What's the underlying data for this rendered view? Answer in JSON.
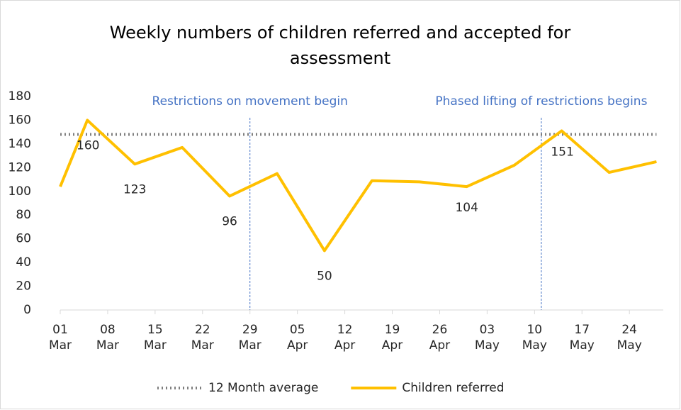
{
  "chart_data": {
    "type": "line",
    "title": "Weekly numbers of children referred and accepted for assessment",
    "x": [
      "01 Mar",
      "05 Mar",
      "12 Mar",
      "19 Mar",
      "26 Mar",
      "02 Apr",
      "09 Apr",
      "16 Apr",
      "23 Apr",
      "30 Apr",
      "07 May",
      "14 May",
      "21 May",
      "28 May"
    ],
    "series": [
      {
        "name": "12 Month average",
        "color": "#7f7f7f",
        "style": "dotted",
        "values": [
          148,
          148,
          148,
          148,
          148,
          148,
          148,
          148,
          148,
          148,
          148,
          148,
          148,
          148
        ]
      },
      {
        "name": "Children referred",
        "color": "#ffc000",
        "values": [
          104,
          160,
          123,
          137,
          96,
          115,
          50,
          109,
          108,
          104,
          122,
          151,
          116,
          125
        ],
        "value_labels": [
          null,
          "160",
          "123",
          null,
          "96",
          null,
          "50",
          null,
          null,
          "104",
          null,
          "151",
          null,
          null
        ]
      }
    ],
    "annotations": [
      {
        "text": "Restrictions on movement begin",
        "x": "29 Mar"
      },
      {
        "text": "Phased lifting of restrictions begins",
        "x": "11 May"
      }
    ],
    "xlim": [
      "01 Mar",
      "29 May"
    ],
    "xticks": [
      "01 Mar",
      "08 Mar",
      "15 Mar",
      "22 Mar",
      "29 Mar",
      "05 Apr",
      "12 Apr",
      "19 Apr",
      "26 Apr",
      "03 May",
      "10 May",
      "17 May",
      "24 May"
    ],
    "ylim": [
      0,
      180
    ],
    "yticks": [
      0,
      20,
      40,
      60,
      80,
      100,
      120,
      140,
      160,
      180
    ],
    "legend": "bottom"
  }
}
